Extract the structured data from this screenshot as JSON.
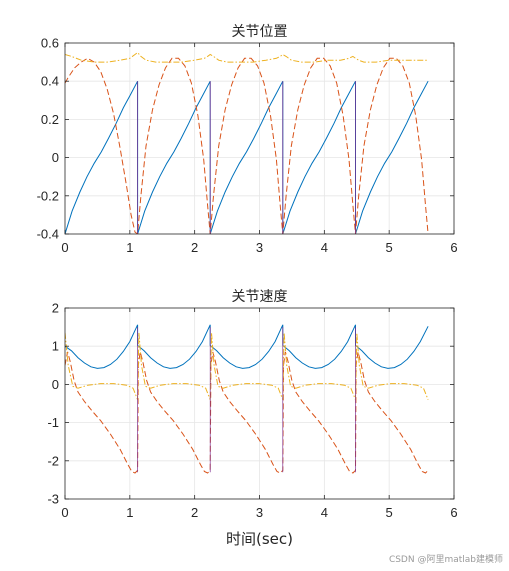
{
  "chart_data": [
    {
      "type": "line",
      "title": "关节位置",
      "xlabel": "",
      "ylabel": "",
      "xlim": [
        0,
        6
      ],
      "ylim": [
        -0.4,
        0.6
      ],
      "xticks": [
        0,
        1,
        2,
        3,
        4,
        5,
        6
      ],
      "yticks": [
        -0.4,
        -0.2,
        0,
        0.2,
        0.4,
        0.6
      ],
      "grid": true,
      "series": [
        {
          "color": "#0072BD",
          "style": "solid",
          "x": [
            0,
            0.11,
            0.23,
            0.34,
            0.45,
            0.56,
            0.67,
            0.79,
            0.9,
            1.01,
            1.12,
            1.12,
            1.23,
            1.35,
            1.46,
            1.57,
            1.68,
            1.79,
            1.91,
            2.02,
            2.13,
            2.24,
            2.24,
            2.35,
            2.47,
            2.58,
            2.69,
            2.8,
            2.91,
            3.03,
            3.14,
            3.25,
            3.36,
            3.36,
            3.47,
            3.59,
            3.7,
            3.81,
            3.92,
            4.03,
            4.15,
            4.26,
            4.37,
            4.48,
            4.48,
            4.59,
            4.71,
            4.82,
            4.93,
            5.04,
            5.15,
            5.27,
            5.38,
            5.49,
            5.6
          ],
          "y": [
            -0.4,
            -0.28,
            -0.18,
            -0.1,
            -0.03,
            0.03,
            0.1,
            0.18,
            0.26,
            0.33,
            0.4,
            -0.4,
            -0.28,
            -0.18,
            -0.1,
            -0.03,
            0.03,
            0.1,
            0.18,
            0.26,
            0.33,
            0.4,
            -0.4,
            -0.28,
            -0.18,
            -0.1,
            -0.03,
            0.03,
            0.1,
            0.18,
            0.26,
            0.33,
            0.4,
            -0.4,
            -0.28,
            -0.18,
            -0.1,
            -0.03,
            0.03,
            0.1,
            0.18,
            0.26,
            0.33,
            0.4,
            -0.4,
            -0.28,
            -0.18,
            -0.1,
            -0.03,
            0.03,
            0.1,
            0.18,
            0.26,
            0.33,
            0.4
          ]
        },
        {
          "color": "#D95319",
          "style": "dashed",
          "x": [
            0,
            0.05,
            0.15,
            0.25,
            0.35,
            0.45,
            0.55,
            0.65,
            0.75,
            0.85,
            0.95,
            1.02,
            1.08,
            1.12,
            1.17,
            1.25,
            1.35,
            1.45,
            1.55,
            1.65,
            1.75,
            1.85,
            1.95,
            2.05,
            2.14,
            2.2,
            2.24,
            2.29,
            2.37,
            2.47,
            2.57,
            2.67,
            2.77,
            2.87,
            2.97,
            3.07,
            3.17,
            3.26,
            3.32,
            3.36,
            3.41,
            3.49,
            3.59,
            3.69,
            3.79,
            3.89,
            3.99,
            4.09,
            4.19,
            4.29,
            4.38,
            4.44,
            4.48,
            4.53,
            4.61,
            4.71,
            4.81,
            4.91,
            5.01,
            5.11,
            5.21,
            5.31,
            5.41,
            5.5,
            5.56,
            5.6
          ],
          "y": [
            0.39,
            0.42,
            0.47,
            0.5,
            0.52,
            0.5,
            0.45,
            0.36,
            0.23,
            0.05,
            -0.15,
            -0.3,
            -0.39,
            -0.4,
            -0.2,
            0.06,
            0.25,
            0.38,
            0.47,
            0.52,
            0.52,
            0.48,
            0.39,
            0.22,
            -0.01,
            -0.25,
            -0.4,
            -0.2,
            0.06,
            0.25,
            0.38,
            0.47,
            0.52,
            0.52,
            0.48,
            0.39,
            0.22,
            -0.01,
            -0.25,
            -0.4,
            -0.2,
            0.06,
            0.25,
            0.38,
            0.47,
            0.52,
            0.52,
            0.48,
            0.39,
            0.22,
            -0.01,
            -0.25,
            -0.4,
            -0.2,
            0.06,
            0.25,
            0.38,
            0.47,
            0.52,
            0.52,
            0.48,
            0.39,
            0.22,
            -0.01,
            -0.25,
            -0.4
          ]
        },
        {
          "color": "#EDB120",
          "style": "dashdot",
          "x": [
            0,
            0.1,
            0.25,
            0.45,
            0.65,
            0.85,
            1.0,
            1.08,
            1.12,
            1.17,
            1.25,
            1.4,
            1.6,
            1.8,
            2.0,
            2.15,
            2.2,
            2.24,
            2.29,
            2.37,
            2.5,
            2.7,
            2.9,
            3.1,
            3.26,
            3.32,
            3.36,
            3.41,
            3.49,
            3.65,
            3.85,
            4.05,
            4.25,
            4.38,
            4.44,
            4.48,
            4.53,
            4.61,
            4.8,
            5.0,
            5.2,
            5.4,
            5.6
          ],
          "y": [
            0.54,
            0.53,
            0.51,
            0.5,
            0.5,
            0.51,
            0.52,
            0.54,
            0.55,
            0.53,
            0.51,
            0.5,
            0.5,
            0.5,
            0.51,
            0.52,
            0.53,
            0.54,
            0.53,
            0.51,
            0.5,
            0.5,
            0.5,
            0.51,
            0.52,
            0.53,
            0.54,
            0.53,
            0.51,
            0.5,
            0.5,
            0.51,
            0.51,
            0.52,
            0.53,
            0.52,
            0.51,
            0.5,
            0.5,
            0.51,
            0.51,
            0.51,
            0.51
          ]
        },
        {
          "color": "#7E2F8E",
          "style": "solid",
          "x": [
            1.12,
            1.12
          ],
          "y": [
            -0.4,
            0.4
          ]
        },
        {
          "color": "#7E2F8E",
          "style": "solid",
          "x": [
            2.24,
            2.24
          ],
          "y": [
            -0.4,
            0.4
          ]
        },
        {
          "color": "#7E2F8E",
          "style": "solid",
          "x": [
            3.36,
            3.36
          ],
          "y": [
            -0.4,
            0.4
          ]
        },
        {
          "color": "#7E2F8E",
          "style": "solid",
          "x": [
            4.48,
            4.48
          ],
          "y": [
            -0.4,
            0.4
          ]
        }
      ]
    },
    {
      "type": "line",
      "title": "关节速度",
      "xlabel": "时间(sec)",
      "ylabel": "",
      "xlim": [
        0,
        6
      ],
      "ylim": [
        -3,
        2
      ],
      "xticks": [
        0,
        1,
        2,
        3,
        4,
        5,
        6
      ],
      "yticks": [
        -3,
        -2,
        -1,
        0,
        1,
        2
      ],
      "grid": true,
      "series": [
        {
          "color": "#0072BD",
          "style": "solid",
          "x": [
            0,
            0.1,
            0.2,
            0.3,
            0.4,
            0.5,
            0.6,
            0.7,
            0.8,
            0.9,
            1.0,
            1.12,
            1.12,
            1.22,
            1.32,
            1.42,
            1.52,
            1.62,
            1.72,
            1.82,
            1.92,
            2.02,
            2.12,
            2.24,
            2.24,
            2.34,
            2.44,
            2.54,
            2.64,
            2.74,
            2.84,
            2.94,
            3.04,
            3.14,
            3.24,
            3.36,
            3.36,
            3.46,
            3.56,
            3.66,
            3.76,
            3.86,
            3.96,
            4.06,
            4.16,
            4.26,
            4.36,
            4.48,
            4.48,
            4.58,
            4.68,
            4.78,
            4.88,
            4.98,
            5.08,
            5.18,
            5.28,
            5.38,
            5.48,
            5.6
          ],
          "y": [
            1.0,
            0.88,
            0.7,
            0.56,
            0.46,
            0.42,
            0.44,
            0.52,
            0.66,
            0.86,
            1.12,
            1.56,
            1.02,
            0.88,
            0.7,
            0.56,
            0.46,
            0.42,
            0.44,
            0.52,
            0.66,
            0.86,
            1.12,
            1.56,
            1.02,
            0.88,
            0.7,
            0.56,
            0.46,
            0.42,
            0.44,
            0.52,
            0.66,
            0.86,
            1.12,
            1.56,
            1.02,
            0.88,
            0.7,
            0.56,
            0.46,
            0.42,
            0.44,
            0.52,
            0.66,
            0.86,
            1.12,
            1.56,
            1.02,
            0.88,
            0.7,
            0.56,
            0.46,
            0.42,
            0.44,
            0.52,
            0.66,
            0.86,
            1.12,
            1.52
          ]
        },
        {
          "color": "#D95319",
          "style": "dashed",
          "x": [
            0,
            0.04,
            0.08,
            0.14,
            0.2,
            0.3,
            0.42,
            0.55,
            0.7,
            0.85,
            0.97,
            1.03,
            1.08,
            1.12,
            1.13,
            1.16,
            1.2,
            1.26,
            1.32,
            1.42,
            1.54,
            1.67,
            1.82,
            1.97,
            2.09,
            2.15,
            2.2,
            2.24,
            2.25,
            2.28,
            2.32,
            2.38,
            2.44,
            2.54,
            2.66,
            2.79,
            2.94,
            3.09,
            3.21,
            3.27,
            3.32,
            3.36,
            3.37,
            3.4,
            3.44,
            3.5,
            3.56,
            3.66,
            3.78,
            3.91,
            4.06,
            4.21,
            4.33,
            4.39,
            4.44,
            4.48,
            4.49,
            4.52,
            4.56,
            4.62,
            4.68,
            4.78,
            4.9,
            5.03,
            5.18,
            5.33,
            5.45,
            5.51,
            5.56,
            5.6
          ],
          "y": [
            0.5,
            0.85,
            0.6,
            0.1,
            -0.2,
            -0.45,
            -0.7,
            -0.95,
            -1.3,
            -1.7,
            -2.1,
            -2.28,
            -2.32,
            -2.25,
            0.5,
            0.85,
            0.6,
            0.1,
            -0.2,
            -0.45,
            -0.7,
            -0.95,
            -1.3,
            -1.7,
            -2.1,
            -2.28,
            -2.32,
            -2.25,
            0.5,
            0.85,
            0.6,
            0.1,
            -0.2,
            -0.45,
            -0.7,
            -0.95,
            -1.3,
            -1.7,
            -2.1,
            -2.28,
            -2.32,
            -2.25,
            0.5,
            0.85,
            0.6,
            0.1,
            -0.2,
            -0.45,
            -0.7,
            -0.95,
            -1.3,
            -1.7,
            -2.1,
            -2.28,
            -2.32,
            -2.25,
            0.5,
            0.85,
            0.6,
            0.1,
            -0.2,
            -0.45,
            -0.7,
            -0.95,
            -1.3,
            -1.7,
            -2.1,
            -2.28,
            -2.32,
            -2.25
          ]
        },
        {
          "color": "#EDB120",
          "style": "dashdot",
          "x": [
            0,
            0.05,
            0.12,
            0.2,
            0.35,
            0.55,
            0.75,
            0.95,
            1.05,
            1.12,
            1.14,
            1.18,
            1.24,
            1.32,
            1.47,
            1.67,
            1.87,
            2.07,
            2.17,
            2.24,
            2.26,
            2.3,
            2.36,
            2.44,
            2.59,
            2.79,
            2.99,
            3.19,
            3.29,
            3.36,
            3.38,
            3.42,
            3.48,
            3.56,
            3.71,
            3.91,
            4.11,
            4.31,
            4.41,
            4.48,
            4.5,
            4.54,
            4.6,
            4.68,
            4.83,
            5.03,
            5.23,
            5.43,
            5.53,
            5.6
          ],
          "y": [
            1.35,
            0.5,
            -0.05,
            -0.1,
            -0.02,
            0.02,
            0.02,
            -0.02,
            -0.1,
            -0.4,
            1.35,
            0.5,
            -0.05,
            -0.1,
            -0.02,
            0.02,
            0.02,
            -0.02,
            -0.1,
            -0.4,
            1.35,
            0.5,
            -0.05,
            -0.1,
            -0.02,
            0.02,
            0.02,
            -0.02,
            -0.1,
            -0.4,
            1.35,
            0.5,
            -0.05,
            -0.1,
            -0.02,
            0.02,
            0.02,
            -0.02,
            -0.1,
            -0.4,
            1.35,
            0.5,
            -0.05,
            -0.1,
            -0.02,
            0.02,
            0.02,
            -0.02,
            -0.1,
            -0.4
          ]
        },
        {
          "color": "#7E2F8E",
          "style": "solid",
          "x": [
            1.12,
            1.12
          ],
          "y": [
            -2.3,
            1.5
          ]
        },
        {
          "color": "#7E2F8E",
          "style": "solid",
          "x": [
            2.24,
            2.24
          ],
          "y": [
            -2.3,
            1.5
          ]
        },
        {
          "color": "#7E2F8E",
          "style": "solid",
          "x": [
            3.36,
            3.36
          ],
          "y": [
            -2.3,
            1.5
          ]
        },
        {
          "color": "#7E2F8E",
          "style": "solid",
          "x": [
            4.48,
            4.48
          ],
          "y": [
            -2.3,
            1.5
          ]
        }
      ]
    }
  ],
  "watermark": "CSDN @阿里matlab建模师"
}
